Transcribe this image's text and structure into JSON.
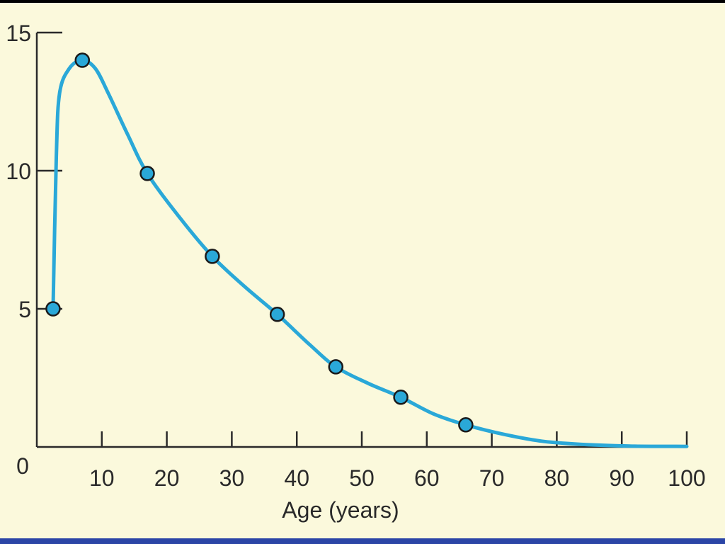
{
  "chart_data": {
    "type": "line",
    "title": "",
    "xlabel": "Age (years)",
    "ylabel": "",
    "xlim": [
      0,
      100
    ],
    "ylim": [
      0,
      15
    ],
    "x_ticks": [
      10,
      20,
      30,
      40,
      50,
      60,
      70,
      80,
      90,
      100
    ],
    "x_tick_labels": [
      "10",
      "20",
      "30",
      "40",
      "50",
      "60",
      "70",
      "80",
      "90",
      "100"
    ],
    "y_ticks": [
      5,
      10,
      15
    ],
    "y_tick_labels": [
      "5",
      "10",
      "15"
    ],
    "origin_label": "0",
    "grid": false,
    "series": [
      {
        "points": [
          {
            "x": 2.5,
            "y": 5.0
          },
          {
            "x": 7,
            "y": 14.0
          },
          {
            "x": 17,
            "y": 9.9
          },
          {
            "x": 27,
            "y": 6.9
          },
          {
            "x": 37,
            "y": 4.8
          },
          {
            "x": 46,
            "y": 2.9
          },
          {
            "x": 56,
            "y": 1.8
          },
          {
            "x": 66,
            "y": 0.8
          }
        ],
        "curve": [
          {
            "x": 2.5,
            "y": 5.0
          },
          {
            "x": 3.0,
            "y": 10.5
          },
          {
            "x": 3.5,
            "y": 12.8
          },
          {
            "x": 5,
            "y": 13.7
          },
          {
            "x": 7,
            "y": 14.0
          },
          {
            "x": 9,
            "y": 13.7
          },
          {
            "x": 11,
            "y": 12.8
          },
          {
            "x": 14,
            "y": 11.3
          },
          {
            "x": 17,
            "y": 9.9
          },
          {
            "x": 22,
            "y": 8.3
          },
          {
            "x": 27,
            "y": 6.9
          },
          {
            "x": 32,
            "y": 5.8
          },
          {
            "x": 37,
            "y": 4.8
          },
          {
            "x": 42,
            "y": 3.7
          },
          {
            "x": 46,
            "y": 2.9
          },
          {
            "x": 51,
            "y": 2.3
          },
          {
            "x": 56,
            "y": 1.8
          },
          {
            "x": 61,
            "y": 1.2
          },
          {
            "x": 66,
            "y": 0.8
          },
          {
            "x": 72,
            "y": 0.45
          },
          {
            "x": 78,
            "y": 0.2
          },
          {
            "x": 85,
            "y": 0.08
          },
          {
            "x": 92,
            "y": 0.03
          },
          {
            "x": 100,
            "y": 0.02
          }
        ]
      }
    ],
    "colors": {
      "line": "#2aa8d8",
      "marker_fill": "#2aa8d8",
      "marker_stroke": "#1a1a1a",
      "axis": "#2a2a2a"
    }
  }
}
